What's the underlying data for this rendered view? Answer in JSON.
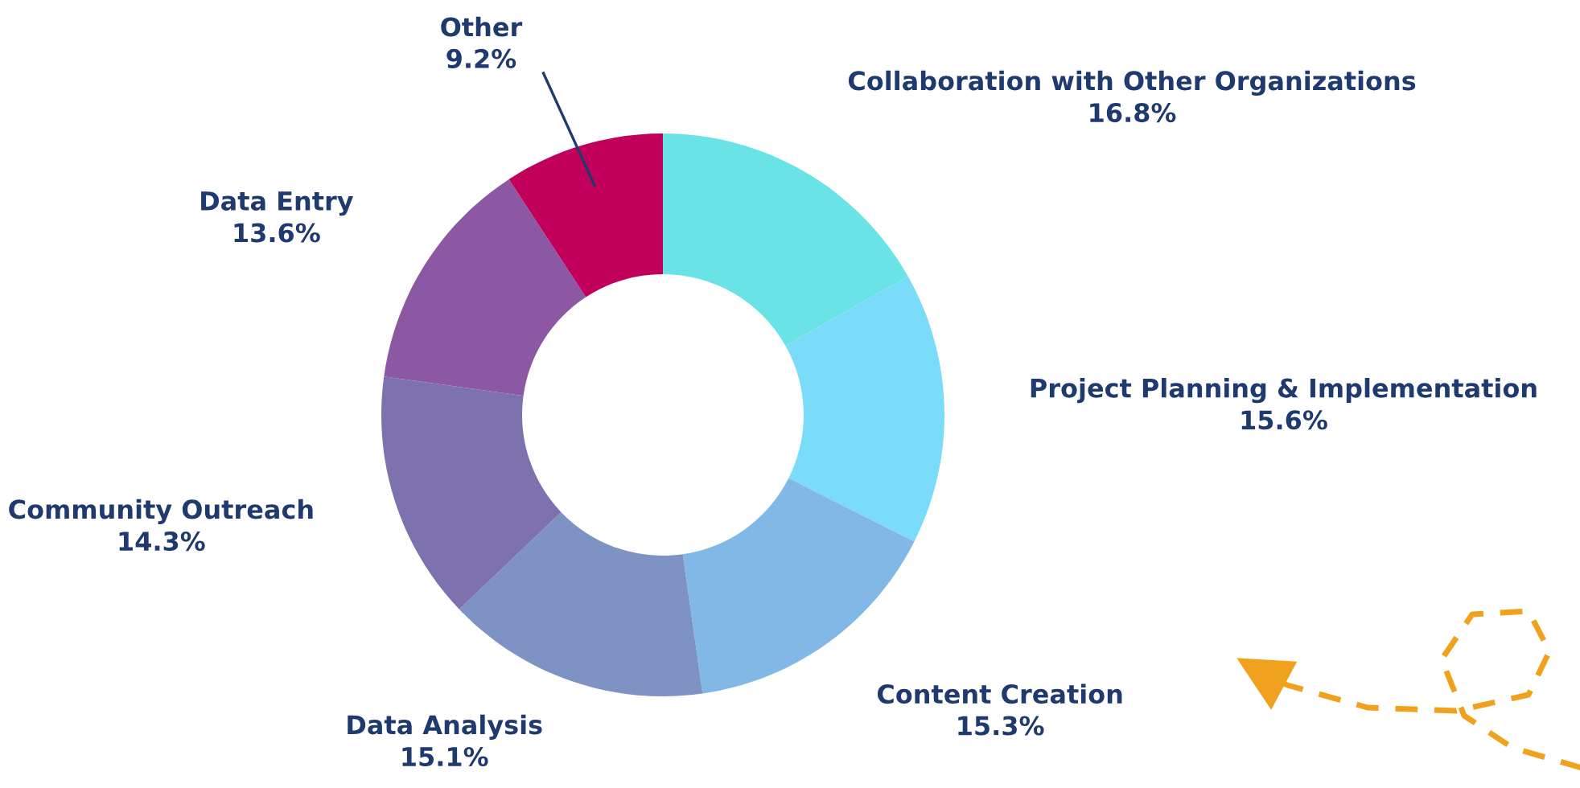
{
  "chart_data": {
    "type": "donut",
    "categories": [
      "Collaboration with Other Organizations",
      "Project Planning & Implementation",
      "Content Creation",
      "Data Analysis",
      "Community Outreach",
      "Data Entry",
      "Other"
    ],
    "values": [
      16.8,
      15.6,
      15.3,
      15.1,
      14.3,
      13.6,
      9.2
    ],
    "colors": [
      "#6ae3e6",
      "#7adcf8",
      "#82b8e6",
      "#7e93c4",
      "#7d72ae",
      "#8c58a3",
      "#c0005a"
    ],
    "value_labels": [
      "16.8%",
      "15.6%",
      "15.3%",
      "15.1%",
      "14.3%",
      "13.6%",
      "9.2%"
    ],
    "legend": false
  }
}
